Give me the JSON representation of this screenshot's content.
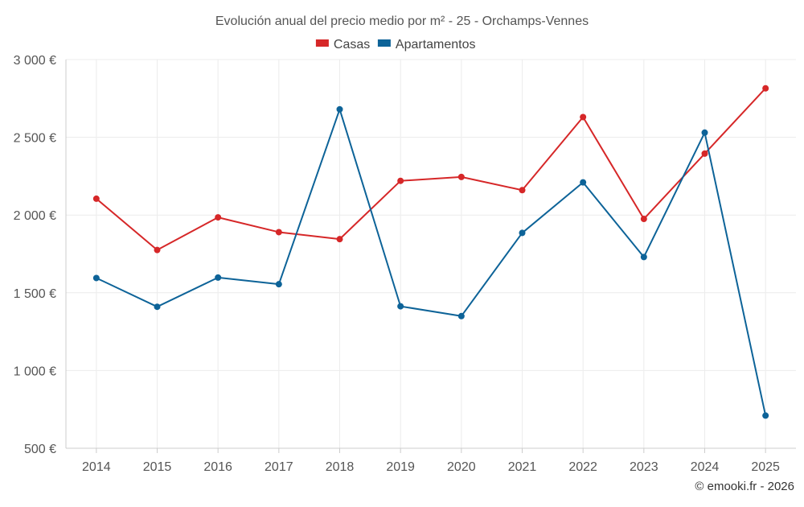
{
  "chart_data": {
    "type": "line",
    "title": "Evolución anual del precio medio por m² - 25 - Orchamps-Vennes",
    "categories": [
      "2014",
      "2015",
      "2016",
      "2017",
      "2018",
      "2019",
      "2020",
      "2021",
      "2022",
      "2023",
      "2024",
      "2025"
    ],
    "series": [
      {
        "name": "Casas",
        "color": "#d62728",
        "values": [
          2105,
          1775,
          1985,
          1890,
          1845,
          2220,
          2245,
          2160,
          2630,
          1975,
          2395,
          2815
        ]
      },
      {
        "name": "Apartamentos",
        "color": "#0d6398",
        "values": [
          1595,
          1410,
          1598,
          1555,
          2680,
          1413,
          1350,
          1885,
          2210,
          1730,
          2530,
          710
        ]
      }
    ],
    "ylim": [
      500,
      3000
    ],
    "yticks": [
      500,
      1000,
      1500,
      2000,
      2500,
      3000
    ],
    "ytick_labels": [
      "500 €",
      "1 000 €",
      "1 500 €",
      "2 000 €",
      "2 500 €",
      "3 000 €"
    ],
    "xlabel": "",
    "ylabel": "",
    "grid": true,
    "legend_position": "top-center"
  },
  "credit": "© emooki.fr - 2026"
}
